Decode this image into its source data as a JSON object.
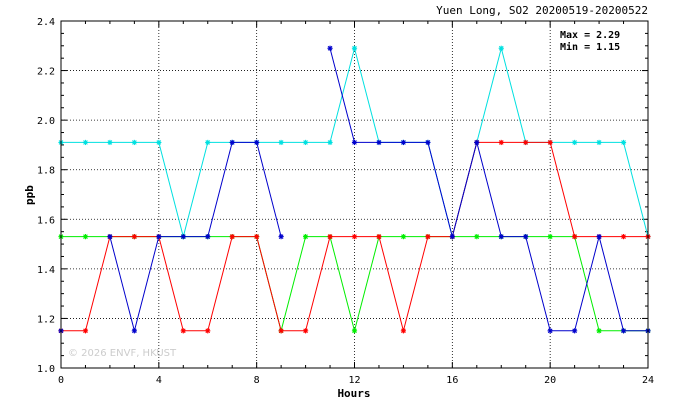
{
  "chart_data": {
    "type": "line",
    "title": "Yuen Long, SO2 20200519-20200522",
    "xlabel": "Hours",
    "ylabel": "ppb",
    "xlim": [
      0,
      24
    ],
    "ylim": [
      1.0,
      2.4
    ],
    "x_ticks": [
      "0",
      "4",
      "8",
      "12",
      "16",
      "20",
      "24"
    ],
    "y_ticks": [
      "1.0",
      "1.2",
      "1.4",
      "1.6",
      "1.8",
      "2.0",
      "2.2",
      "2.4"
    ],
    "grid": true,
    "annotations": {
      "max": "Max = 2.29",
      "min": "Min = 1.15"
    },
    "copyright": "© 2026  ENVF, HKUST",
    "x": [
      0,
      1,
      2,
      3,
      4,
      5,
      6,
      7,
      8,
      9,
      10,
      11,
      12,
      13,
      14,
      15,
      16,
      17,
      18,
      19,
      20,
      21,
      22,
      23,
      24
    ],
    "series": [
      {
        "color": "#00e0e0",
        "values": [
          1.91,
          1.91,
          1.91,
          1.91,
          1.91,
          1.53,
          1.91,
          1.91,
          1.91,
          1.91,
          1.91,
          1.91,
          2.29,
          1.91,
          1.91,
          1.91,
          1.53,
          1.91,
          2.29,
          1.91,
          1.91,
          1.91,
          1.91,
          1.91,
          1.53
        ]
      },
      {
        "color": "#00ee00",
        "values": [
          1.53,
          1.53,
          1.53,
          1.53,
          1.53,
          1.53,
          1.53,
          1.53,
          1.53,
          1.15,
          1.53,
          1.53,
          1.15,
          1.53,
          1.53,
          1.53,
          1.53,
          1.53,
          1.53,
          1.53,
          1.53,
          1.53,
          1.15,
          1.15,
          1.15
        ]
      },
      {
        "color": "#ff0000",
        "values": [
          1.15,
          1.15,
          1.53,
          1.53,
          1.53,
          1.15,
          1.15,
          1.53,
          1.53,
          1.15,
          1.15,
          1.53,
          1.53,
          1.53,
          1.15,
          1.53,
          1.53,
          1.91,
          1.91,
          1.91,
          1.91,
          1.53,
          1.53,
          1.53,
          1.53
        ]
      },
      {
        "color": "#0000cc",
        "values": [
          1.15,
          null,
          1.53,
          1.15,
          1.53,
          1.53,
          1.53,
          1.91,
          1.91,
          1.53,
          null,
          2.29,
          1.91,
          1.91,
          1.91,
          1.91,
          1.53,
          1.91,
          1.53,
          1.53,
          1.15,
          1.15,
          1.53,
          1.15,
          1.15
        ]
      }
    ]
  }
}
